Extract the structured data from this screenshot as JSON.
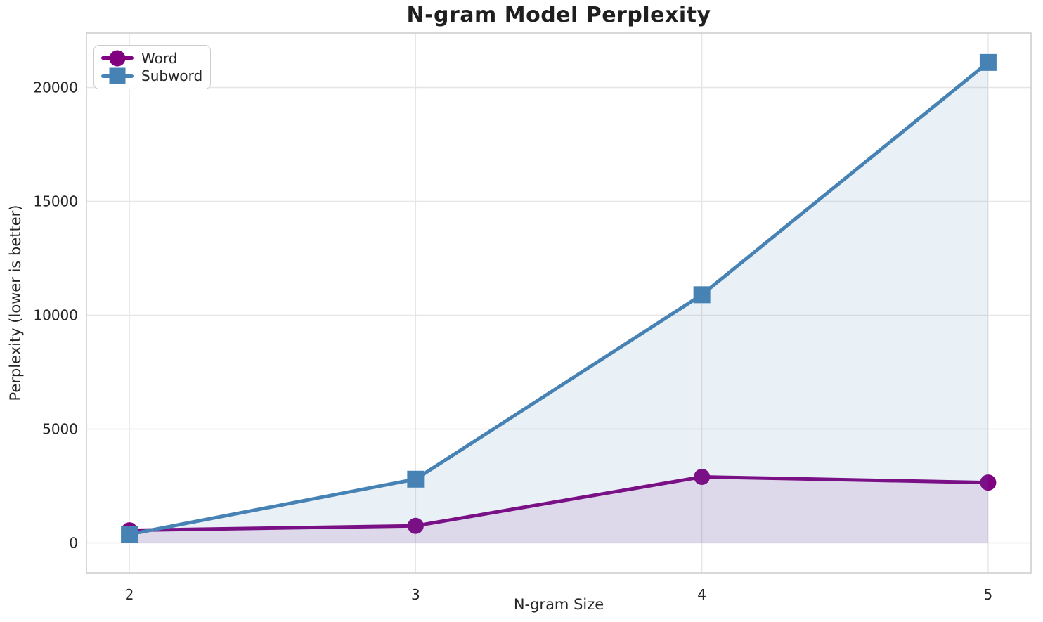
{
  "chart_data": {
    "type": "line",
    "title": "N-gram Model Perplexity",
    "xlabel": "N-gram Size",
    "ylabel": "Perplexity (lower is better)",
    "x": [
      2,
      3,
      4,
      5
    ],
    "xticks": [
      2,
      3,
      4,
      5
    ],
    "xtick_labels": [
      "2",
      "3",
      "4",
      "5"
    ],
    "yticks": [
      0,
      5000,
      10000,
      15000,
      20000
    ],
    "ytick_labels": [
      "0",
      "5000",
      "10000",
      "15000",
      "20000"
    ],
    "xlim": [
      1.85,
      5.15
    ],
    "ylim": [
      -1312,
      22392
    ],
    "grid": true,
    "grid_color": "#e6e6e6",
    "frame_color": "#cccccc",
    "text_color": "#262626",
    "legend_position": "upper left",
    "series": [
      {
        "name": "Word",
        "marker": "circle",
        "color": "#800080",
        "fill_alpha": 0.1,
        "values": [
          550,
          750,
          2900,
          2650
        ]
      },
      {
        "name": "Subword",
        "marker": "square",
        "color": "#4682B4",
        "fill_alpha": 0.12,
        "values": [
          380,
          2800,
          10900,
          21100
        ]
      }
    ]
  },
  "legend": {
    "items": [
      {
        "label": "Word",
        "marker": "circle",
        "color": "#800080"
      },
      {
        "label": "Subword",
        "marker": "square",
        "color": "#4682B4"
      }
    ]
  }
}
